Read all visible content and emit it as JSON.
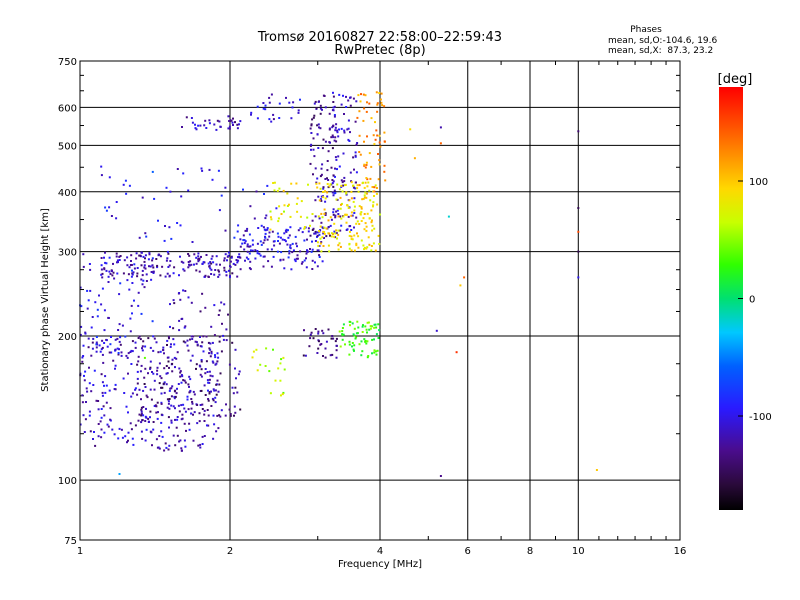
{
  "chart_data": {
    "type": "scatter",
    "title": "Tromsø 20160827 22:58:00–22:59:43",
    "subtitle": "RwPretec (8p)",
    "xlabel": "Frequency [MHz]",
    "ylabel": "Stationary phase Virtual Height [km]",
    "xscale": "log",
    "yscale": "log",
    "xlim": [
      1,
      16
    ],
    "ylim": [
      75,
      750
    ],
    "grid": true,
    "x_ticks": [
      1,
      2,
      4,
      6,
      8,
      10,
      16
    ],
    "y_ticks": [
      75,
      100,
      200,
      300,
      400,
      500,
      600,
      750
    ],
    "stats": {
      "heading": "Phases",
      "line1": "mean, sd,O:-104.6, 19.6",
      "line2": "mean, sd,X:  87.3, 23.2"
    },
    "colorbar": {
      "label": "[deg]",
      "range": [
        -180,
        180
      ],
      "ticks": [
        -100,
        0,
        100
      ],
      "colormap": "rainbow"
    },
    "clusters": [
      {
        "name": "o-trace-high",
        "x": [
          1.6,
          2.1
        ],
        "y": [
          535,
          575
        ],
        "phase": -115,
        "count": 35
      },
      {
        "name": "o-trace-high-upper",
        "x": [
          2.2,
          2.9
        ],
        "y": [
          560,
          640
        ],
        "phase": -110,
        "count": 25
      },
      {
        "name": "o-trace-F",
        "x": [
          1.1,
          2.1
        ],
        "y": [
          265,
          300
        ],
        "phase": -120,
        "count": 180
      },
      {
        "name": "o-trace-F-rise",
        "x": [
          2.1,
          3.1
        ],
        "y": [
          275,
          340
        ],
        "phase": -105,
        "count": 140
      },
      {
        "name": "o-trace-cusp",
        "x": [
          2.9,
          3.3
        ],
        "y": [
          320,
          640
        ],
        "phase": -125,
        "count": 120
      },
      {
        "name": "o-trace-cusp-2",
        "x": [
          3.2,
          3.6
        ],
        "y": [
          330,
          650
        ],
        "phase": -110,
        "count": 90
      },
      {
        "name": "x-trace-F",
        "x": [
          3.0,
          4.0
        ],
        "y": [
          300,
          420
        ],
        "phase": 90,
        "count": 170
      },
      {
        "name": "x-trace-F-upper",
        "x": [
          3.6,
          4.1
        ],
        "y": [
          400,
          650
        ],
        "phase": 120,
        "count": 60
      },
      {
        "name": "x-trace-lower",
        "x": [
          3.3,
          4.0
        ],
        "y": [
          180,
          215
        ],
        "phase": 30,
        "count": 70
      },
      {
        "name": "o-trace-E-low",
        "x": [
          1.0,
          1.9
        ],
        "y": [
          115,
          200
        ],
        "phase": -115,
        "count": 330
      },
      {
        "name": "o-trace-E-low-2",
        "x": [
          1.3,
          2.1
        ],
        "y": [
          135,
          200
        ],
        "phase": -130,
        "count": 150
      },
      {
        "name": "o-trace-mid",
        "x": [
          1.0,
          1.4
        ],
        "y": [
          180,
          300
        ],
        "phase": -100,
        "count": 80
      },
      {
        "name": "o-trace-mid-2",
        "x": [
          1.5,
          2.0
        ],
        "y": [
          190,
          250
        ],
        "phase": -120,
        "count": 40
      },
      {
        "name": "o-trace-lower-right",
        "x": [
          2.8,
          3.3
        ],
        "y": [
          180,
          210
        ],
        "phase": -135,
        "count": 35
      },
      {
        "name": "scatter-upper",
        "x": [
          1.1,
          2.5
        ],
        "y": [
          310,
          460
        ],
        "phase": -100,
        "count": 60
      },
      {
        "name": "scatter-yellow",
        "x": [
          2.4,
          3.0
        ],
        "y": [
          330,
          420
        ],
        "phase": 80,
        "count": 35
      },
      {
        "name": "scatter-mixed-low",
        "x": [
          2.2,
          2.6
        ],
        "y": [
          150,
          190
        ],
        "phase": 60,
        "count": 20
      }
    ],
    "points": [
      {
        "x": 5.3,
        "y": 545,
        "phase": -120
      },
      {
        "x": 5.3,
        "y": 505,
        "phase": 140
      },
      {
        "x": 5.5,
        "y": 355,
        "phase": -20
      },
      {
        "x": 5.8,
        "y": 255,
        "phase": 100
      },
      {
        "x": 5.9,
        "y": 265,
        "phase": 140
      },
      {
        "x": 5.2,
        "y": 205,
        "phase": -110
      },
      {
        "x": 5.7,
        "y": 185,
        "phase": 160
      },
      {
        "x": 5.3,
        "y": 102,
        "phase": -130
      },
      {
        "x": 4.6,
        "y": 540,
        "phase": 90
      },
      {
        "x": 4.7,
        "y": 470,
        "phase": 110
      },
      {
        "x": 10.0,
        "y": 535,
        "phase": -140
      },
      {
        "x": 10.0,
        "y": 370,
        "phase": -150
      },
      {
        "x": 10.0,
        "y": 330,
        "phase": 150
      },
      {
        "x": 10.0,
        "y": 300,
        "phase": -150
      },
      {
        "x": 10.0,
        "y": 265,
        "phase": -100
      },
      {
        "x": 10.9,
        "y": 105,
        "phase": 100
      },
      {
        "x": 1.2,
        "y": 103,
        "phase": -40
      },
      {
        "x": 1.4,
        "y": 440,
        "phase": -60
      },
      {
        "x": 1.35,
        "y": 180,
        "phase": 40
      }
    ]
  }
}
